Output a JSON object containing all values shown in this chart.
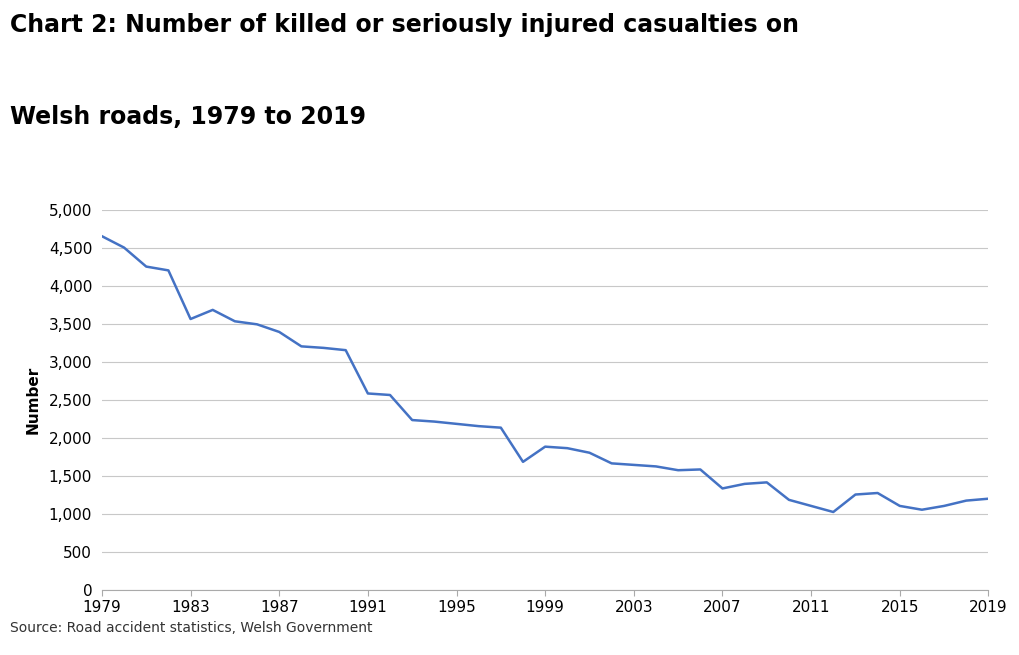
{
  "title_line1": "Chart 2: Number of killed or seriously injured casualties on",
  "title_line2": "Welsh roads, 1979 to 2019",
  "ylabel": "Number",
  "source": "Source: Road accident statistics, Welsh Government",
  "line_color": "#4472C4",
  "background_color": "#ffffff",
  "grid_color": "#c8c8c8",
  "ylim": [
    0,
    5000
  ],
  "yticks": [
    0,
    500,
    1000,
    1500,
    2000,
    2500,
    3000,
    3500,
    4000,
    4500,
    5000
  ],
  "xtick_labels": [
    "1979",
    "1983",
    "1987",
    "1991",
    "1995",
    "1999",
    "2003",
    "2007",
    "2011",
    "2015",
    "2019"
  ],
  "years": [
    1979,
    1980,
    1981,
    1982,
    1983,
    1984,
    1985,
    1986,
    1987,
    1988,
    1989,
    1990,
    1991,
    1992,
    1993,
    1994,
    1995,
    1996,
    1997,
    1998,
    1999,
    2000,
    2001,
    2002,
    2003,
    2004,
    2005,
    2006,
    2007,
    2008,
    2009,
    2010,
    2011,
    2012,
    2013,
    2014,
    2015,
    2016,
    2017,
    2018,
    2019
  ],
  "values": [
    4650,
    4500,
    4250,
    4200,
    3560,
    3680,
    3530,
    3490,
    3390,
    3200,
    3180,
    3150,
    2580,
    2560,
    2230,
    2210,
    2180,
    2150,
    2130,
    1680,
    1880,
    1860,
    1800,
    1660,
    1640,
    1620,
    1570,
    1580,
    1330,
    1390,
    1410,
    1180,
    1100,
    1020,
    1250,
    1270,
    1100,
    1050,
    1100,
    1170,
    1195
  ],
  "title_fontsize": 17,
  "tick_fontsize": 11,
  "ylabel_fontsize": 11,
  "source_fontsize": 10,
  "linewidth": 1.8
}
